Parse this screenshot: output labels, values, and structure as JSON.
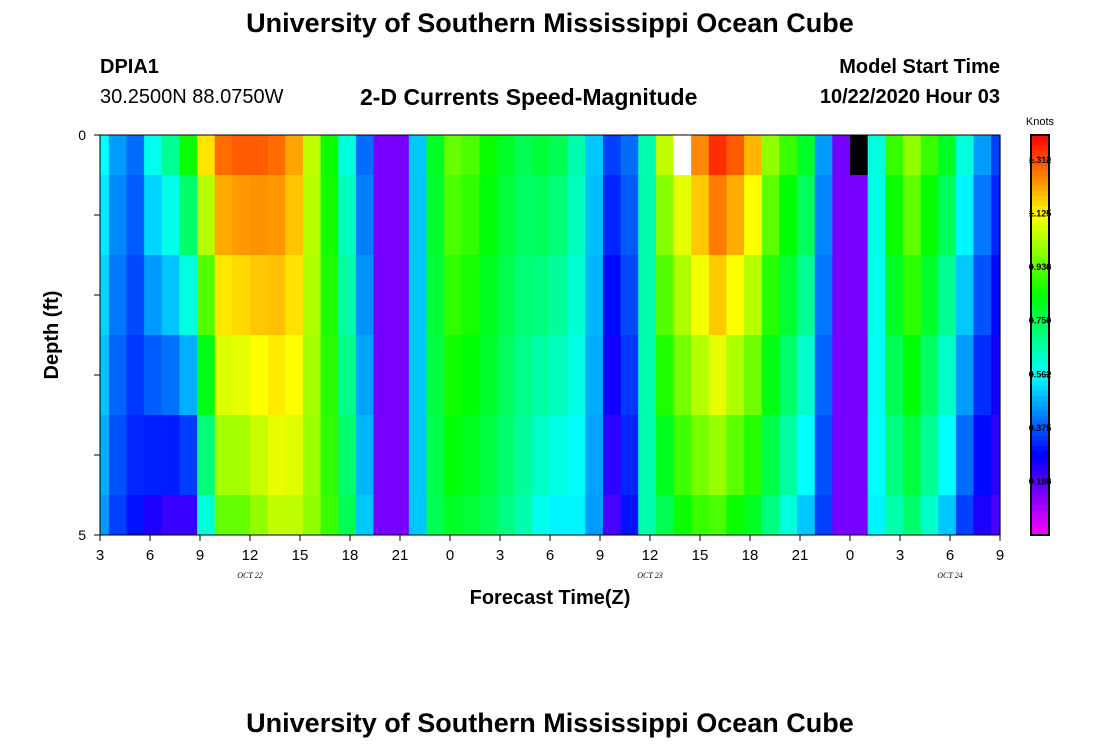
{
  "header": {
    "title": "University of Southern Mississippi Ocean Cube",
    "station_id": "DPIA1",
    "coords": "30.2500N 88.0750W",
    "chart_subtitle": "2-D Currents Speed-Magnitude",
    "model_label": "Model Start Time",
    "model_time": "10/22/2020 Hour 03"
  },
  "footer": {
    "title": "University of Southern Mississippi Ocean Cube"
  },
  "chart_data": {
    "type": "heatmap",
    "title": "2-D Currents Speed-Magnitude",
    "xlabel": "Forecast Time(Z)",
    "ylabel": "Depth (ft)",
    "x_ticks": [
      "3",
      "6",
      "9",
      "12",
      "15",
      "18",
      "21",
      "0",
      "3",
      "6",
      "9",
      "12",
      "15",
      "18",
      "21",
      "0",
      "3",
      "6",
      "9"
    ],
    "date_labels": [
      {
        "text": "OCT 22",
        "tick_index": 3
      },
      {
        "text": "OCT 23",
        "tick_index": 11
      },
      {
        "text": "OCT 24",
        "tick_index": 17
      }
    ],
    "y_range": [
      0,
      5
    ],
    "y_tick_labels": [
      "0",
      "5"
    ],
    "hours": [
      3,
      4,
      5,
      6,
      7,
      8,
      9,
      10,
      11,
      12,
      13,
      14,
      15,
      16,
      17,
      18,
      19,
      20,
      21,
      22,
      23,
      24,
      25,
      26,
      27,
      28,
      29,
      30,
      31,
      32,
      33,
      34,
      35,
      36,
      37,
      38,
      39,
      40,
      41,
      42,
      43,
      44,
      45,
      46,
      47,
      48,
      49,
      50,
      51,
      52,
      53,
      54
    ],
    "depth_layers": [
      "0-0.5",
      "0.5-1.5",
      "1.5-2.5",
      "2.5-3.5",
      "3.5-4.5",
      "4.5-5"
    ],
    "surface_speed_knots": [
      0.56,
      0.45,
      0.4,
      0.58,
      0.68,
      0.85,
      1.15,
      1.28,
      1.3,
      1.3,
      1.28,
      1.22,
      1.05,
      0.85,
      0.6,
      0.4,
      0.15,
      0.15,
      0.5,
      0.8,
      0.95,
      0.92,
      0.85,
      0.8,
      0.75,
      0.78,
      0.75,
      0.65,
      0.5,
      0.35,
      0.4,
      0.65,
      1.05,
      1.15,
      1.25,
      1.35,
      1.3,
      1.2,
      1.0,
      0.9,
      0.8,
      0.45,
      0.15,
      0.15,
      0.6,
      0.9,
      1.0,
      0.9,
      0.8,
      0.6,
      0.45,
      0.35
    ],
    "bottom_speed_knots": [
      0.45,
      0.35,
      0.3,
      0.25,
      0.22,
      0.22,
      0.6,
      0.95,
      0.95,
      1.0,
      1.05,
      1.05,
      1.0,
      0.9,
      0.75,
      0.5,
      0.15,
      0.15,
      0.5,
      0.75,
      0.8,
      0.78,
      0.75,
      0.7,
      0.65,
      0.58,
      0.55,
      0.55,
      0.45,
      0.2,
      0.3,
      0.65,
      0.75,
      0.85,
      0.9,
      0.92,
      0.85,
      0.8,
      0.7,
      0.6,
      0.5,
      0.35,
      0.15,
      0.15,
      0.55,
      0.65,
      0.72,
      0.62,
      0.5,
      0.35,
      0.25,
      0.2
    ],
    "missing_cells": [
      {
        "hour": 36,
        "layer": 0,
        "fill": "white"
      },
      {
        "hour": 46,
        "layer": 0,
        "fill": "black"
      }
    ],
    "colorbar": {
      "title": "Knots",
      "min": 0,
      "max": 1.4,
      "ticks": [
        "1.312",
        "1.125",
        "0.938",
        "0.750",
        "0.562",
        "0.375",
        "0.188"
      ],
      "tick_values": [
        1.312,
        1.125,
        0.938,
        0.75,
        0.562,
        0.375,
        0.188
      ]
    }
  }
}
